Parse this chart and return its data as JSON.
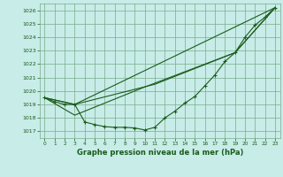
{
  "background_color": "#c8ece8",
  "grid_color": "#7aaa8a",
  "line_color": "#1a5c1a",
  "xlabel": "Graphe pression niveau de la mer (hPa)",
  "ylim": [
    1016.5,
    1026.5
  ],
  "xlim": [
    -0.5,
    23.5
  ],
  "yticks": [
    1017,
    1018,
    1019,
    1020,
    1021,
    1022,
    1023,
    1024,
    1025,
    1026
  ],
  "xticks": [
    0,
    1,
    2,
    3,
    4,
    5,
    6,
    7,
    8,
    9,
    10,
    11,
    12,
    13,
    14,
    15,
    16,
    17,
    18,
    19,
    20,
    21,
    22,
    23
  ],
  "line1_x": [
    0,
    1,
    2,
    3,
    4,
    5,
    6,
    7,
    8,
    9,
    10,
    11,
    12,
    13,
    14,
    15,
    16,
    17,
    18,
    19,
    20,
    21,
    22,
    23
  ],
  "line1_y": [
    1019.5,
    1019.2,
    1019.0,
    1019.0,
    1017.7,
    1017.5,
    1017.35,
    1017.3,
    1017.3,
    1017.25,
    1017.1,
    1017.3,
    1018.0,
    1018.5,
    1019.1,
    1019.6,
    1020.4,
    1021.2,
    1022.2,
    1022.85,
    1024.0,
    1024.9,
    1025.5,
    1026.2
  ],
  "line2_x": [
    0,
    3,
    23
  ],
  "line2_y": [
    1019.5,
    1019.0,
    1026.2
  ],
  "line3_x": [
    0,
    3,
    10,
    19,
    23
  ],
  "line3_y": [
    1019.5,
    1018.2,
    1020.3,
    1022.85,
    1026.2
  ],
  "line4_x": [
    0,
    3,
    11,
    19,
    23
  ],
  "line4_y": [
    1019.5,
    1019.0,
    1020.5,
    1022.85,
    1026.2
  ]
}
